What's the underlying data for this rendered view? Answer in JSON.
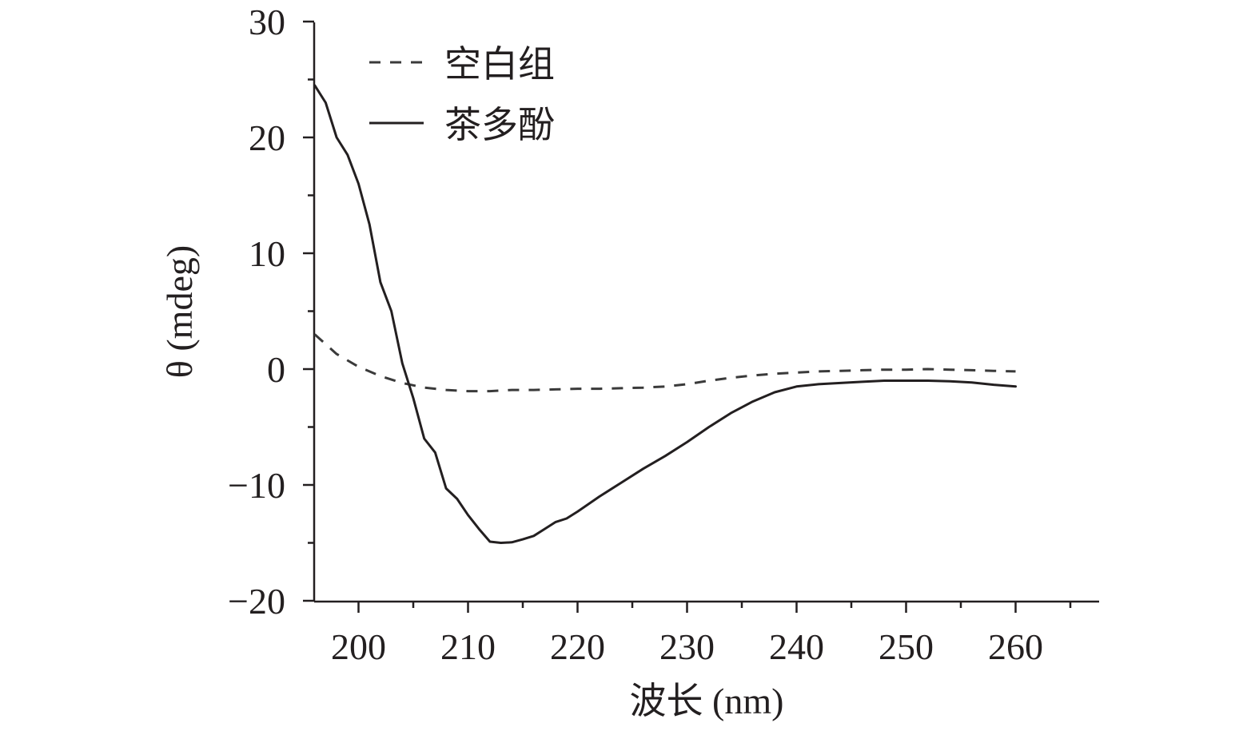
{
  "chart_data": {
    "type": "line",
    "xlabel": "波长 (nm)",
    "ylabel": "θ (mdeg)",
    "xlim": [
      196,
      268
    ],
    "ylim": [
      -20,
      30
    ],
    "x_ticks": [
      200,
      210,
      220,
      230,
      240,
      250,
      260
    ],
    "x_tick_labels": [
      "200",
      "210",
      "220",
      "230",
      "240",
      "250",
      "260"
    ],
    "y_ticks": [
      -20,
      -10,
      0,
      10,
      20,
      30
    ],
    "y_tick_labels": [
      "−20",
      "−10",
      "0",
      "10",
      "20",
      "30"
    ],
    "grid": false,
    "legend_position": "top-left",
    "series": [
      {
        "name": "空白组",
        "style": "dashed",
        "color": "#3a3a3a",
        "x": [
          196,
          198,
          200,
          202,
          204,
          206,
          208,
          210,
          212,
          214,
          216,
          218,
          220,
          222,
          224,
          226,
          228,
          230,
          232,
          234,
          236,
          238,
          240,
          242,
          244,
          246,
          248,
          250,
          252,
          254,
          256,
          258,
          260
        ],
        "y": [
          3.0,
          1.3,
          0.2,
          -0.6,
          -1.2,
          -1.6,
          -1.8,
          -1.9,
          -1.9,
          -1.8,
          -1.8,
          -1.75,
          -1.7,
          -1.7,
          -1.65,
          -1.6,
          -1.5,
          -1.3,
          -1.0,
          -0.75,
          -0.55,
          -0.4,
          -0.3,
          -0.2,
          -0.15,
          -0.1,
          -0.05,
          -0.05,
          0.0,
          -0.05,
          -0.1,
          -0.15,
          -0.2
        ]
      },
      {
        "name": "茶多酚",
        "style": "solid",
        "color": "#231f20",
        "x": [
          196,
          197,
          198,
          199,
          200,
          201,
          202,
          203,
          204,
          205,
          206,
          207,
          208,
          209,
          210,
          211,
          212,
          213,
          214,
          215,
          216,
          217,
          218,
          219,
          220,
          222,
          224,
          226,
          228,
          230,
          232,
          234,
          236,
          238,
          240,
          242,
          244,
          246,
          248,
          250,
          252,
          254,
          256,
          258,
          260
        ],
        "y": [
          24.5,
          23.0,
          20.0,
          18.5,
          16.0,
          12.5,
          7.5,
          5.0,
          0.5,
          -2.5,
          -6.0,
          -7.2,
          -10.3,
          -11.2,
          -12.6,
          -13.8,
          -14.9,
          -15.0,
          -14.95,
          -14.7,
          -14.4,
          -13.8,
          -13.2,
          -12.9,
          -12.3,
          -11.0,
          -9.8,
          -8.6,
          -7.5,
          -6.3,
          -5.0,
          -3.8,
          -2.8,
          -2.0,
          -1.5,
          -1.3,
          -1.2,
          -1.1,
          -1.0,
          -1.0,
          -1.0,
          -1.05,
          -1.15,
          -1.35,
          -1.5
        ]
      }
    ]
  }
}
